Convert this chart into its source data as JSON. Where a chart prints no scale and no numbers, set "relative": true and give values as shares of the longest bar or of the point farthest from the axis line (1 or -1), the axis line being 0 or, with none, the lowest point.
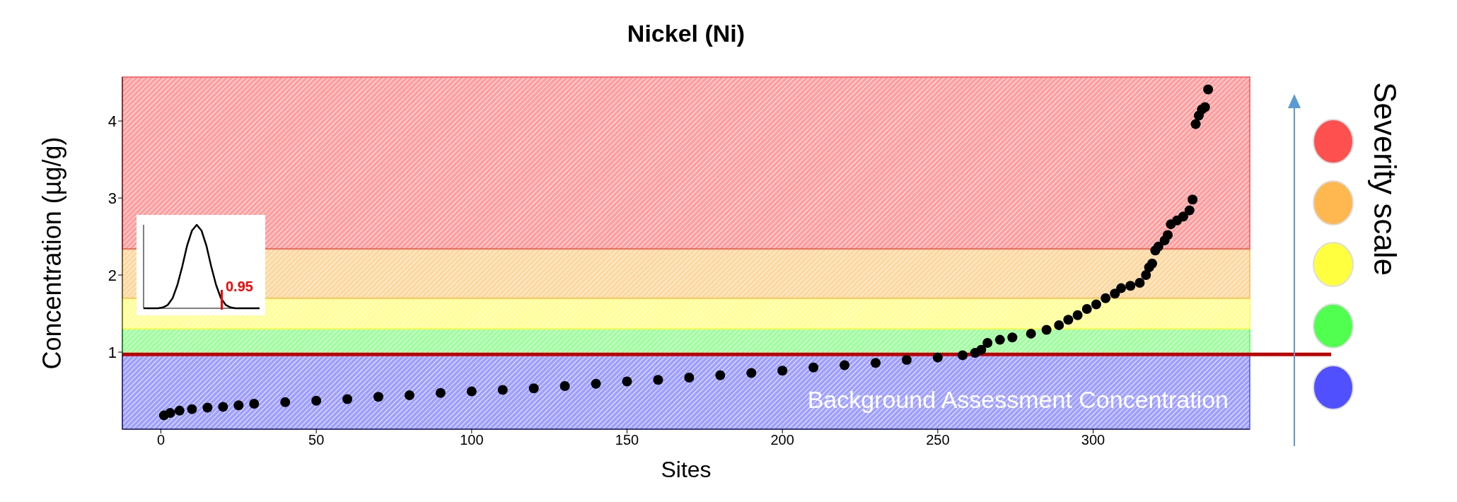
{
  "chart_data": [
    {
      "type": "scatter",
      "title": "Nickel (Ni)",
      "xlabel": "Sites",
      "ylabel": "Concentration (µg/g)",
      "x": [
        1,
        3,
        6,
        10,
        15,
        20,
        25,
        30,
        40,
        50,
        60,
        70,
        80,
        90,
        100,
        110,
        120,
        130,
        140,
        150,
        160,
        170,
        180,
        190,
        200,
        210,
        220,
        230,
        240,
        250,
        258,
        262,
        264,
        266,
        270,
        274,
        280,
        285,
        289,
        292,
        295,
        298,
        301,
        304,
        307,
        309,
        312,
        315,
        317,
        318,
        319,
        320,
        321,
        323,
        324,
        325,
        327,
        329,
        331,
        332,
        333,
        334,
        335,
        336,
        337
      ],
      "values": [
        0.18,
        0.21,
        0.24,
        0.26,
        0.28,
        0.29,
        0.31,
        0.33,
        0.35,
        0.37,
        0.39,
        0.42,
        0.44,
        0.47,
        0.49,
        0.51,
        0.53,
        0.56,
        0.59,
        0.62,
        0.64,
        0.67,
        0.7,
        0.73,
        0.76,
        0.8,
        0.83,
        0.86,
        0.9,
        0.93,
        0.96,
        0.99,
        1.03,
        1.12,
        1.16,
        1.19,
        1.24,
        1.29,
        1.35,
        1.42,
        1.48,
        1.56,
        1.62,
        1.7,
        1.76,
        1.83,
        1.86,
        1.9,
        2.0,
        2.1,
        2.15,
        2.32,
        2.37,
        2.45,
        2.52,
        2.66,
        2.71,
        2.76,
        2.84,
        2.98,
        3.96,
        4.07,
        4.15,
        4.18,
        4.41
      ],
      "color": "#000000",
      "marker": "circle",
      "xlim": [
        -12.4,
        350.4
      ],
      "xticks": [
        0,
        50,
        100,
        150,
        200,
        250,
        300
      ],
      "ylim": [
        0,
        4.57
      ],
      "yticks": [
        1,
        2,
        3,
        4
      ],
      "bands": [
        {
          "axis": "y",
          "from": 0,
          "to": 0.97,
          "color": "#5050ff",
          "label": "Background Assessment Concentration"
        },
        {
          "axis": "y",
          "from": 0.97,
          "to": 1.3,
          "color": "#50ff50"
        },
        {
          "axis": "y",
          "from": 1.3,
          "to": 1.7,
          "color": "#ffff40"
        },
        {
          "axis": "y",
          "from": 1.7,
          "to": 2.34,
          "color": "#ffb850"
        },
        {
          "axis": "y",
          "from": 2.34,
          "to": 4.57,
          "color": "#ff5050"
        }
      ],
      "ref_lines": [
        {
          "axis": "y",
          "value": 0.97,
          "color": "#c00000"
        }
      ],
      "annotations": [
        "Severity scale"
      ]
    },
    {
      "type": "line",
      "relative": true,
      "tick_labels": false,
      "color": "#000000",
      "categories": [
        null,
        null,
        null,
        null,
        null,
        null,
        null,
        null,
        null,
        null,
        null,
        null,
        null,
        null,
        null,
        null,
        null,
        null,
        null,
        null,
        null,
        null,
        null,
        null,
        null
      ],
      "values": [
        0,
        0,
        0,
        0,
        0.01,
        0.04,
        0.12,
        0.28,
        0.5,
        0.75,
        0.93,
        1,
        0.93,
        0.75,
        0.5,
        0.28,
        0.12,
        0.04,
        0.01,
        0,
        0,
        0,
        0,
        0,
        0
      ],
      "annotations": [
        "0.95"
      ]
    }
  ]
}
